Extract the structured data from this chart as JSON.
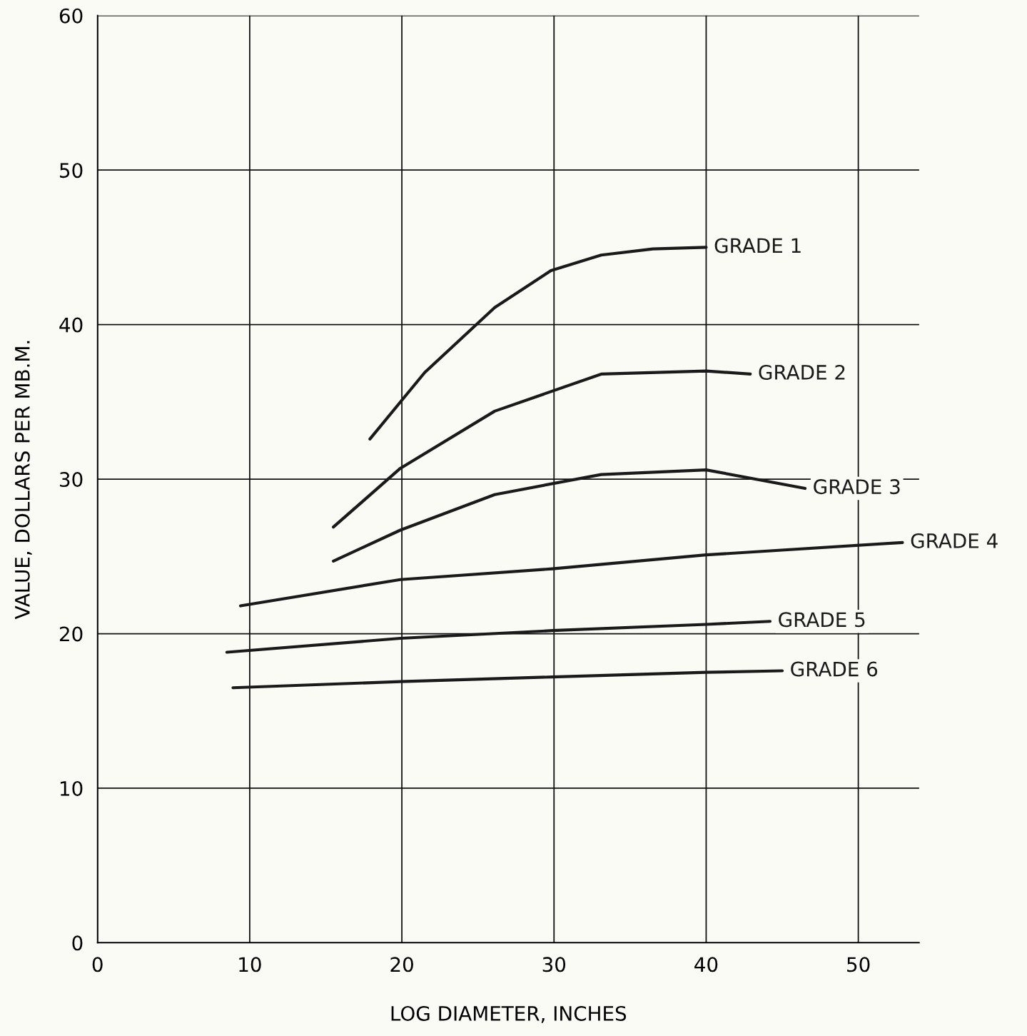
{
  "chart_data": {
    "type": "line",
    "xlabel": "LOG DIAMETER, INCHES",
    "ylabel": "VALUE, DOLLARS PER MB.M.",
    "xlim": [
      0,
      54
    ],
    "ylim": [
      0,
      60
    ],
    "xticks": [
      0,
      10,
      20,
      30,
      40,
      50
    ],
    "yticks": [
      0,
      10,
      20,
      30,
      40,
      50,
      60
    ],
    "grid": true,
    "legend": false,
    "marker": "none",
    "line_style": "solid",
    "series": [
      {
        "name": "GRADE 1",
        "color": "#1a1a1a",
        "x": [
          17.9,
          21.5,
          26.1,
          29.8,
          33.1,
          36.5,
          40.0
        ],
        "values": [
          32.6,
          36.9,
          41.1,
          43.5,
          44.5,
          44.9,
          45.0
        ]
      },
      {
        "name": "GRADE 2",
        "color": "#1a1a1a",
        "x": [
          15.5,
          19.9,
          26.1,
          33.1,
          40.0,
          42.9
        ],
        "values": [
          26.9,
          30.7,
          34.4,
          36.8,
          37.0,
          36.8
        ]
      },
      {
        "name": "GRADE 3",
        "color": "#1a1a1a",
        "x": [
          15.5,
          19.9,
          26.1,
          33.1,
          40.0,
          46.5
        ],
        "values": [
          24.7,
          26.7,
          29.0,
          30.3,
          30.6,
          29.4
        ]
      },
      {
        "name": "GRADE 4",
        "color": "#1a1a1a",
        "x": [
          9.4,
          19.9,
          29.9,
          40.0,
          52.9
        ],
        "values": [
          21.8,
          23.5,
          24.2,
          25.1,
          25.9
        ]
      },
      {
        "name": "GRADE 5",
        "color": "#1a1a1a",
        "x": [
          8.5,
          19.9,
          29.9,
          40.0,
          44.2
        ],
        "values": [
          18.8,
          19.7,
          20.2,
          20.6,
          20.8
        ]
      },
      {
        "name": "GRADE 6",
        "color": "#1a1a1a",
        "x": [
          8.9,
          19.9,
          29.9,
          40.0,
          45.0
        ],
        "values": [
          16.5,
          16.9,
          17.2,
          17.5,
          17.6
        ]
      }
    ]
  }
}
